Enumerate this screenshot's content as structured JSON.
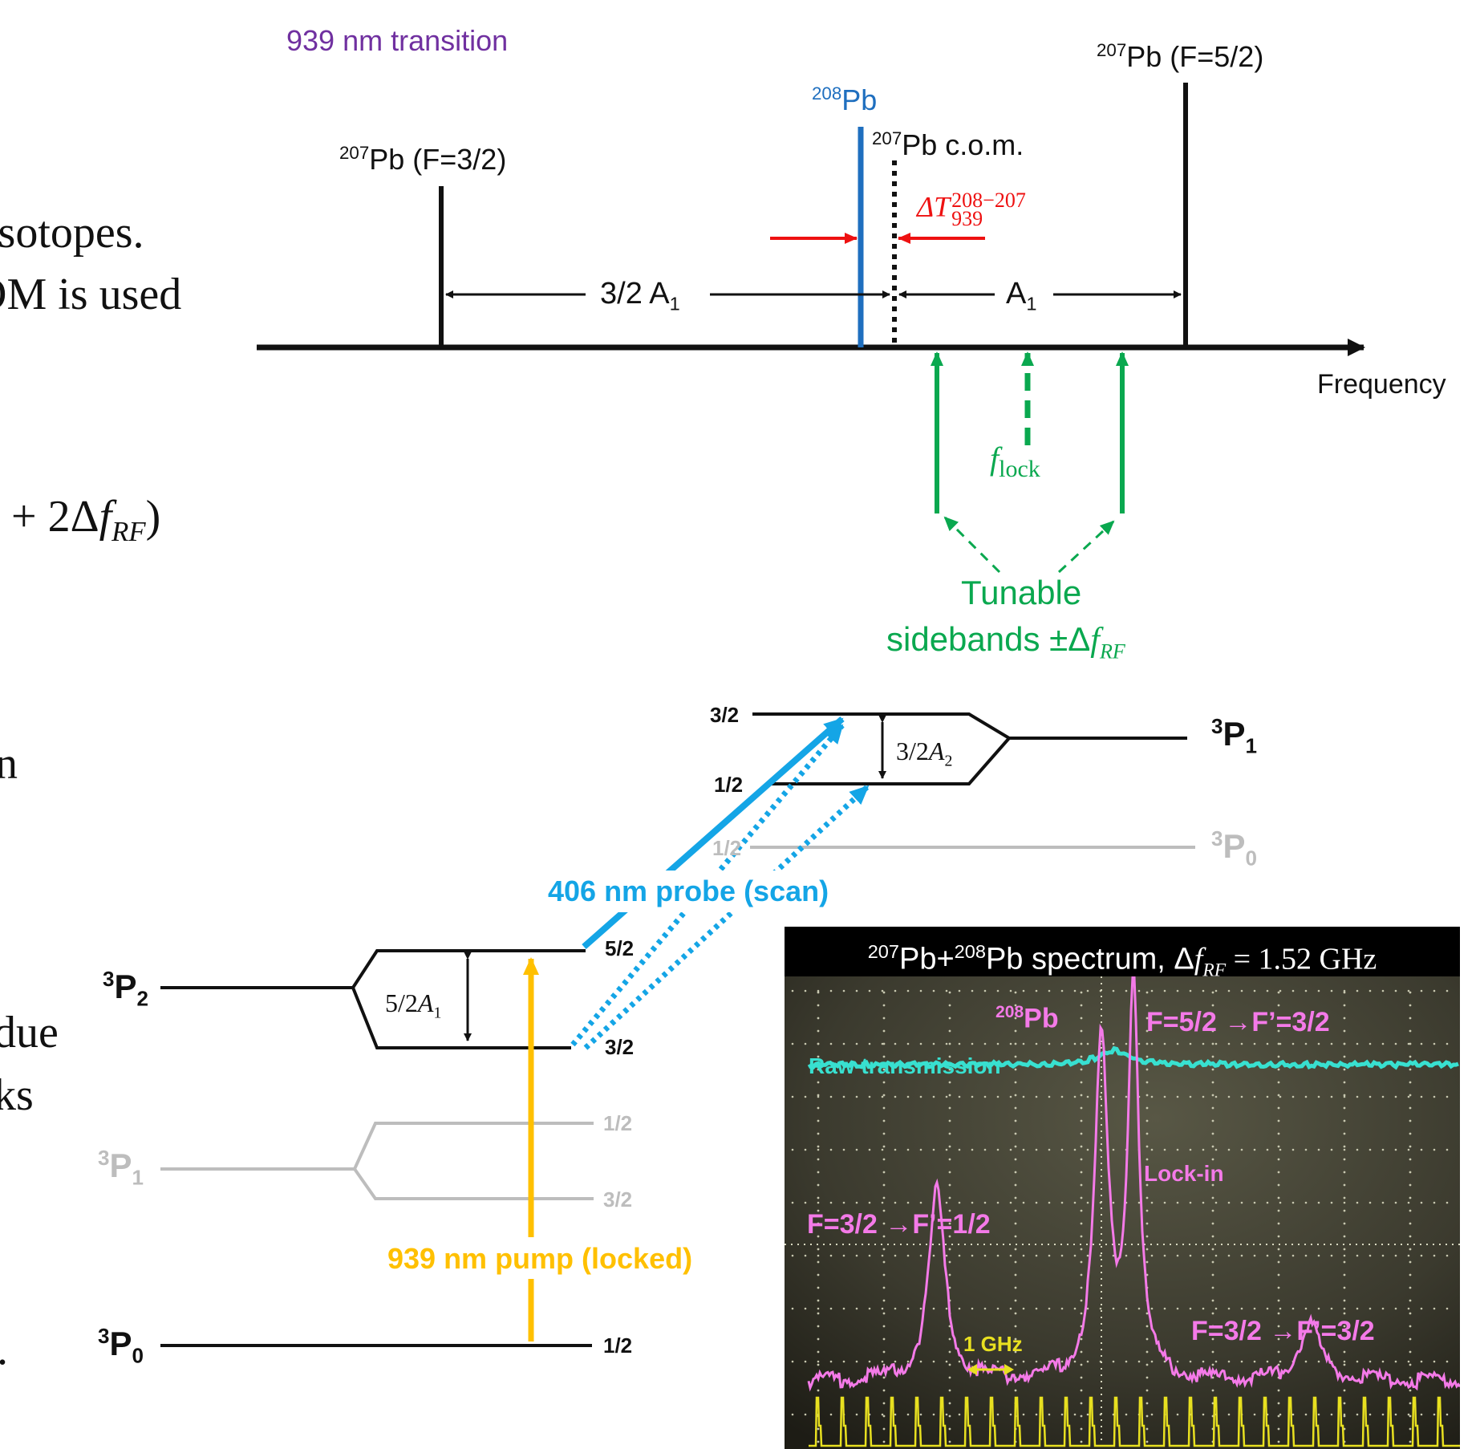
{
  "top_diagram": {
    "title": "939 nm transition",
    "pb207_f52": {
      "mass": "207",
      "text": "Pb (F=5/2)"
    },
    "pb208": {
      "mass": "208",
      "text": "Pb"
    },
    "pb207_com": {
      "mass": "207",
      "text": "Pb c.o.m."
    },
    "pb207_f32": {
      "mass": "207",
      "text": "Pb (F=3/2)"
    },
    "delta_t": {
      "symbol": "ΔT",
      "sup": "208−207",
      "sub": "939"
    },
    "a1_32": {
      "prefix": "3/2 A",
      "sub": "1"
    },
    "a1": {
      "prefix": "A",
      "sub": "1"
    },
    "axis_label": "Frequency",
    "f_lock": {
      "symbol": "f",
      "sub": "lock"
    },
    "sidebands_line1": "Tunable",
    "sidebands_line2_text": "sidebands ±Δ",
    "sidebands_line2_f": "f",
    "sidebands_line2_sub": "RF"
  },
  "left_text": {
    "line1": "isotopes.",
    "line2": "OM is used",
    "line3_a": "+ 2Δ",
    "line3_f": "f",
    "line3_sub": "RF",
    "line3_b": ")",
    "line4": "n",
    "line5": "due",
    "line6": "ks",
    "line7": "."
  },
  "level_diagram": {
    "p1_upper": {
      "sup": "3",
      "letter": "P",
      "sub": "1"
    },
    "p0_upper": {
      "sup": "3",
      "letter": "P",
      "sub": "0"
    },
    "p2": {
      "sup": "3",
      "letter": "P",
      "sub": "2"
    },
    "p1_lower": {
      "sup": "3",
      "letter": "P",
      "sub": "1"
    },
    "p0_lower": {
      "sup": "3",
      "letter": "P",
      "sub": "0"
    },
    "f_32_top": "3/2",
    "f_12_top": "1/2",
    "f_12_gray_top": "1/2",
    "f_52": "5/2",
    "f_32_mid": "3/2",
    "f_12_gray": "1/2",
    "f_32_gray": "3/2",
    "f_12_bottom": "1/2",
    "split_a2": {
      "prefix": "3/2",
      "var": "A",
      "sub": "2"
    },
    "split_a1": {
      "prefix": "5/2",
      "var": "A",
      "sub": "1"
    },
    "probe_label": "406 nm probe (scan)",
    "pump_label": "939 nm pump (locked)"
  },
  "scope": {
    "title_pre": "Pb+",
    "title_mass1": "207",
    "title_mass2": "208",
    "title_mid": "Pb spectrum, Δ",
    "title_f": "f",
    "title_sub": "RF",
    "title_post": " = 1.52 GHz",
    "pb208_mass": "208",
    "pb208_text": "Pb",
    "raw_label": "Raw transmission",
    "lockin_label": "Lock-in",
    "peak_52_32": "F=5/2 →F’=3/2",
    "peak_32_12": "F=3/2 →F’=1/2",
    "peak_32_32": "F=3/2 →F’=3/2",
    "ghz_label": "1 GHz"
  },
  "colors": {
    "purple": "#7030a0",
    "blue": "#1f6fbf",
    "red": "#ee1111",
    "green": "#0aa84f",
    "cyan_probe": "#14a5e6",
    "yellow_pump": "#ffc000",
    "gray": "#bdbdbd",
    "scope_cyan": "#38e0d0",
    "scope_pink": "#f47ae8",
    "scope_yellow": "#e8e020"
  }
}
